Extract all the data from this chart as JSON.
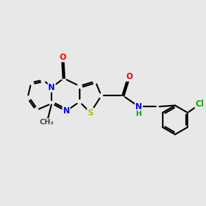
{
  "background_color": "#e8e8e8",
  "bond_color": "#000000",
  "bond_width": 1.6,
  "atom_colors": {
    "N": "#0000ff",
    "O": "#ff0000",
    "S": "#bbbb00",
    "Cl": "#00aa00",
    "NH": "#00aa00",
    "C": "#000000"
  },
  "font_size": 8.5
}
